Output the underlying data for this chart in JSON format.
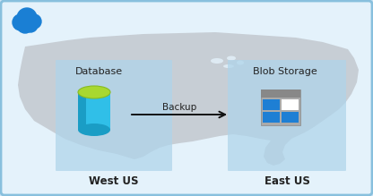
{
  "bg_outer": "#cce4f5",
  "bg_inner": "#e4f2fb",
  "map_color": "#c2c8cf",
  "map_alpha": 0.85,
  "region_color": "#aed4ea",
  "region_alpha": 0.72,
  "arrow_color": "#111111",
  "backup_label": "Backup",
  "west_label": "West US",
  "east_label": "East US",
  "db_label": "Database",
  "blob_label": "Blob Storage",
  "cloud_color": "#1a7fd4",
  "db_body_light": "#30bfe8",
  "db_body_dark": "#1a9dc5",
  "db_top_color": "#a8d830",
  "db_top_rim": "#88bb22",
  "blob_frame_light": "#aaaaaa",
  "blob_frame_dark": "#888888",
  "blob_blue": "#1e7fd4",
  "blob_white": "#ffffff",
  "border_color": "#88c0dd",
  "text_dark": "#222222",
  "label_fontsize": 7.5,
  "region_fontsize": 8.5,
  "header_fontsize": 8
}
